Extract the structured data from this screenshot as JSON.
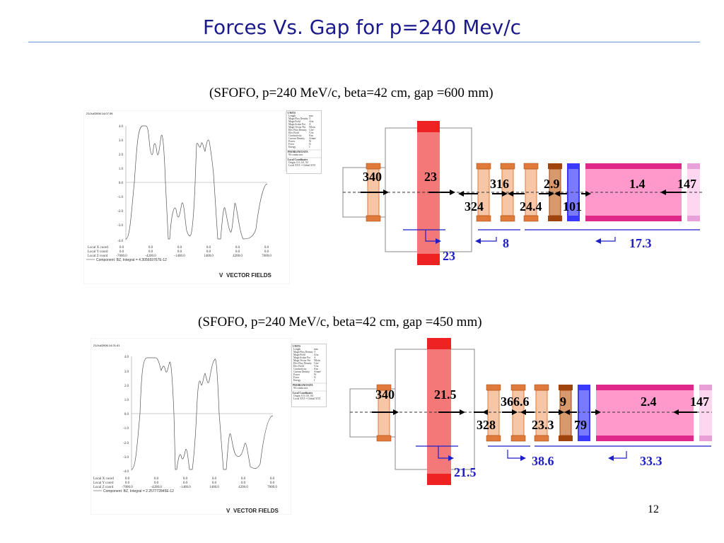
{
  "title": "Forces Vs. Gap for p=240 Mev/c",
  "slide_number": "12",
  "panels": [
    {
      "subtitle": "(SFOFO, p=240 MeV/c, beta=42 cm, gap =600 mm)",
      "plot": {
        "timestamp": "21/Jul/2006 14:07:39",
        "integral": "Component: BZ, Integral = 4.305669767E-12",
        "y_ticks": [
          "4.0",
          "3.0",
          "2.0",
          "1.0",
          "0.0",
          "-1.0",
          "-2.0",
          "-3.0",
          "-4.0"
        ],
        "coord_labels": [
          "Local X coord",
          "Local Y coord",
          "Local Z coord"
        ],
        "x_vals": [
          "0.0",
          "0.0",
          "0.0",
          "0.0",
          "0.0",
          "0.0"
        ],
        "y_vals": [
          "0.0",
          "0.0",
          "0.0",
          "0.0",
          "0.0",
          "0.0"
        ],
        "z_vals": [
          "-7000.0",
          "-4200.0",
          "-1400.0",
          "1400.0",
          "4200.0",
          "7000.0"
        ],
        "legend_title": "UNITS",
        "legend_rows": [
          "Length",
          "Magn Flux Density",
          "Magn Field",
          "Magn Scalar Pot",
          "Magn Vector Pot",
          "Elec Flux Density",
          "Elec Field",
          "Conductivity",
          "Current Density",
          "Power",
          "Force",
          "Energy"
        ],
        "legend_units": [
          "mm",
          "T",
          "A/m",
          "A",
          "Wb/m",
          "C/m²",
          "V/m",
          "S/m",
          "A/mm²",
          "W",
          "N",
          "J"
        ],
        "problem_title": "PROBLEM DATA",
        "problem_row": "90 conductors",
        "local_title": "Local Coordinates",
        "local_rows": [
          "Origin: 0.0, 0.0, 0.0",
          "Local XYZ = Global XYZ"
        ],
        "logo": "VECTOR FIELDS"
      },
      "forces": {
        "f_340": "340",
        "f_23_top": "23",
        "f_316": "316",
        "f_2_9": "2.9",
        "f_1_4": "1.4",
        "f_147": "147",
        "f_324": "324",
        "f_24_4": "24.4",
        "f_101": "101",
        "f_8": "8",
        "f_17_3": "17.3",
        "f_23_bottom": "23"
      }
    },
    {
      "subtitle": "(SFOFO, p=240 MeV/c, beta=42 cm, gap =450 mm)",
      "plot": {
        "timestamp": "21/Jul/2006 14:21:41",
        "integral": "Component: BZ, Integral = 2.257772845E-12",
        "y_ticks": [
          "4.0",
          "3.0",
          "2.0",
          "1.0",
          "0.0",
          "-1.0",
          "-2.0",
          "-3.0",
          "-4.0"
        ],
        "coord_labels": [
          "Local X coord",
          "Local Y coord",
          "Local Z coord"
        ],
        "x_vals": [
          "0.0",
          "0.0",
          "0.0",
          "0.0",
          "0.0",
          "0.0"
        ],
        "y_vals": [
          "0.0",
          "0.0",
          "0.0",
          "0.0",
          "0.0",
          "0.0"
        ],
        "z_vals": [
          "-7000.0",
          "-4200.0",
          "-1400.0",
          "1400.0",
          "4200.0",
          "7000.0"
        ],
        "legend_title": "UNITS",
        "legend_rows": [
          "Length",
          "Magn Flux Density",
          "Magn Field",
          "Magn Scalar Pot",
          "Magn Vector Pot",
          "Elec Flux Density",
          "Elec Field",
          "Conductivity",
          "Current Density",
          "Power",
          "Force",
          "Energy"
        ],
        "legend_units": [
          "mm",
          "T",
          "A/m",
          "A",
          "Wb/m",
          "C/m²",
          "V/m",
          "S/m",
          "A/mm²",
          "W",
          "N",
          "J"
        ],
        "problem_title": "PROBLEM DATA",
        "problem_row": "90 conductors",
        "local_title": "Local Coordinates",
        "local_rows": [
          "Origin: 0.0, 0.0, 0.0",
          "Local XYZ = Global XYZ"
        ],
        "logo": "VECTOR FIELDS"
      },
      "forces": {
        "f_340": "340",
        "f_21_5_top": "21.5",
        "f_366_6": "366.6",
        "f_9": "9",
        "f_2_4": "2.4",
        "f_147": "147",
        "f_328": "328",
        "f_23_3": "23.3",
        "f_79": "79",
        "f_38_6": "38.6",
        "f_33_3": "33.3",
        "f_21_5_bottom": "21.5"
      }
    }
  ],
  "colors": {
    "title": "#1a1a8c",
    "blue_label": "#1f1fc8",
    "coil_light": "#f6c6a6",
    "coil_orange": "#e07a3a",
    "coil_brown": "#a0440e",
    "coil_mid": "#d89a6c",
    "coil_blue": "#3a3aff",
    "coil_pink": "#ff99cc",
    "coil_magenta": "#e0288a",
    "coil_red": "#ee2222",
    "coil_red_light": "#f47878",
    "coil_faint": "#ffd6f0",
    "coil_faint_edge": "#e7a0d8"
  }
}
